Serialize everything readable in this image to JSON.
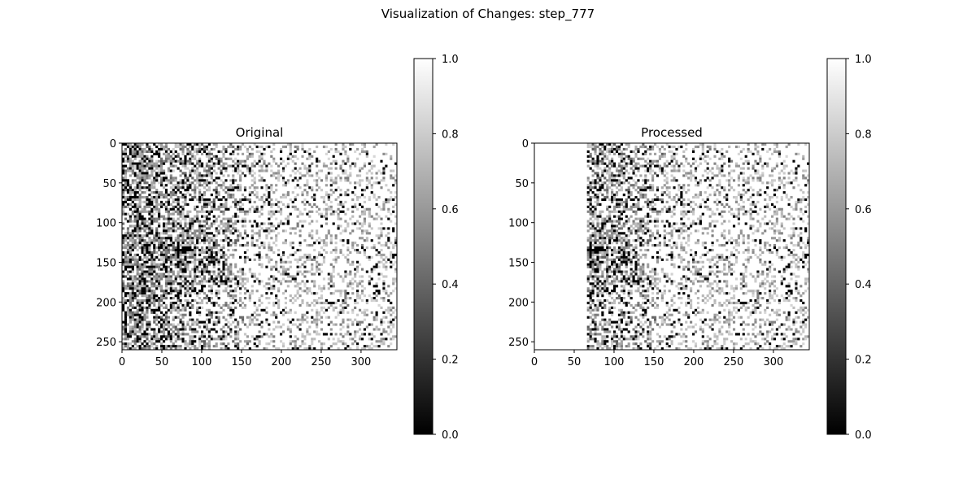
{
  "figure": {
    "title": "Visualization of Changes: step_777"
  },
  "chart_data": [
    {
      "type": "heatmap",
      "title": "Original",
      "colormap": "gray",
      "image_shape": [
        260,
        345
      ],
      "xlim": [
        0,
        345
      ],
      "ylim": [
        260,
        0
      ],
      "xticks": [
        0,
        50,
        100,
        150,
        200,
        250,
        300
      ],
      "yticks": [
        0,
        50,
        100,
        150,
        200,
        250
      ],
      "colorbar": {
        "range": [
          0.0,
          1.0
        ],
        "ticks": [
          "0.0",
          "0.2",
          "0.4",
          "0.6",
          "0.8",
          "1.0"
        ]
      },
      "blank_columns": [
        0,
        0
      ]
    },
    {
      "type": "heatmap",
      "title": "Processed",
      "colormap": "gray",
      "image_shape": [
        260,
        345
      ],
      "xlim": [
        0,
        345
      ],
      "ylim": [
        260,
        0
      ],
      "xticks": [
        0,
        50,
        100,
        150,
        200,
        250,
        300
      ],
      "yticks": [
        0,
        50,
        100,
        150,
        200,
        250
      ],
      "colorbar": {
        "range": [
          0.0,
          1.0
        ],
        "ticks": [
          "0.0",
          "0.2",
          "0.4",
          "0.6",
          "0.8",
          "1.0"
        ]
      },
      "blank_columns": [
        0,
        66
      ]
    }
  ]
}
